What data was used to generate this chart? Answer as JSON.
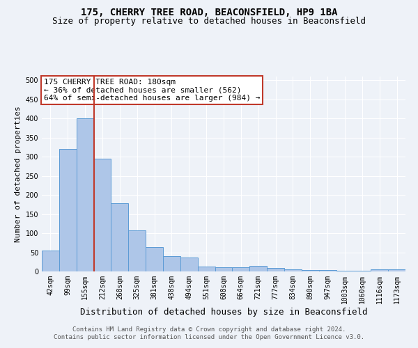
{
  "title": "175, CHERRY TREE ROAD, BEACONSFIELD, HP9 1BA",
  "subtitle": "Size of property relative to detached houses in Beaconsfield",
  "xlabel": "Distribution of detached houses by size in Beaconsfield",
  "ylabel": "Number of detached properties",
  "categories": [
    "42sqm",
    "99sqm",
    "155sqm",
    "212sqm",
    "268sqm",
    "325sqm",
    "381sqm",
    "438sqm",
    "494sqm",
    "551sqm",
    "608sqm",
    "664sqm",
    "721sqm",
    "777sqm",
    "834sqm",
    "890sqm",
    "947sqm",
    "1003sqm",
    "1060sqm",
    "1116sqm",
    "1173sqm"
  ],
  "values": [
    55,
    320,
    400,
    295,
    178,
    107,
    64,
    40,
    36,
    12,
    11,
    11,
    15,
    9,
    6,
    4,
    3,
    2,
    1,
    5,
    6
  ],
  "bar_color": "#aec6e8",
  "bar_edge_color": "#5b9bd5",
  "vline_x": 2.5,
  "vline_color": "#c0392b",
  "annotation_line1": "175 CHERRY TREE ROAD: 180sqm",
  "annotation_line2": "← 36% of detached houses are smaller (562)",
  "annotation_line3": "64% of semi-detached houses are larger (984) →",
  "annotation_box_color": "#c0392b",
  "annotation_box_facecolor": "white",
  "ylim": [
    0,
    510
  ],
  "yticks": [
    0,
    50,
    100,
    150,
    200,
    250,
    300,
    350,
    400,
    450,
    500
  ],
  "footer_line1": "Contains HM Land Registry data © Crown copyright and database right 2024.",
  "footer_line2": "Contains public sector information licensed under the Open Government Licence v3.0.",
  "background_color": "#eef2f8",
  "title_fontsize": 10,
  "subtitle_fontsize": 9,
  "xlabel_fontsize": 9,
  "ylabel_fontsize": 8,
  "tick_fontsize": 7,
  "ann_fontsize": 8,
  "footer_fontsize": 6.5
}
